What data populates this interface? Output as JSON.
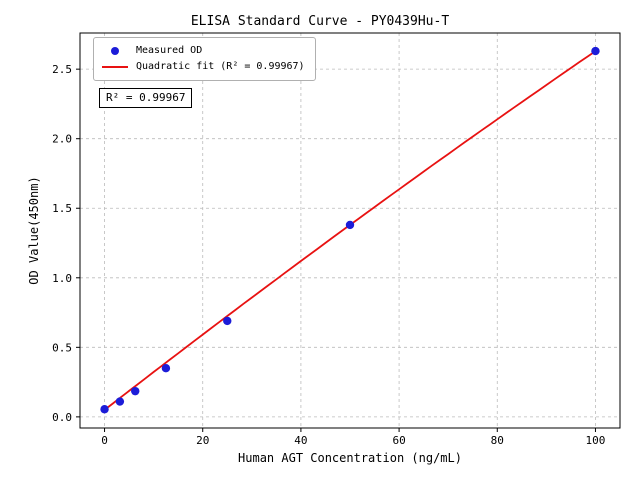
{
  "title": "ELISA Standard Curve - PY0439Hu-T",
  "annotation": "R² = 0.99967",
  "legend": {
    "measured": "Measured OD",
    "fit": "Quadratic fit (R² = 0.99967)"
  },
  "colors": {
    "point": "#1c1cd8",
    "fit_line": "#e81212",
    "grid": "#bbbbbb",
    "axis": "#000000"
  },
  "chart_data": {
    "type": "scatter",
    "title": "ELISA Standard Curve - PY0439Hu-T",
    "xlabel": "Human AGT Concentration (ng/mL)",
    "ylabel": "OD Value(450nm)",
    "x": [
      0,
      3.125,
      6.25,
      12.5,
      25,
      50,
      100
    ],
    "y": [
      0.055,
      0.11,
      0.185,
      0.35,
      0.69,
      1.38,
      2.63
    ],
    "xticks": [
      0,
      20,
      40,
      60,
      80,
      100
    ],
    "yticks": [
      0.0,
      0.5,
      1.0,
      1.5,
      2.0,
      2.5
    ],
    "xlim": [
      -5,
      105
    ],
    "ylim": [
      -0.08,
      2.76
    ],
    "grid": true,
    "legend_position": "upper left",
    "fit": {
      "type": "quadratic",
      "coefficients": [
        0.05,
        0.0274,
        -1.6e-05
      ],
      "range": [
        0,
        100
      ],
      "r_squared": 0.99967
    }
  }
}
